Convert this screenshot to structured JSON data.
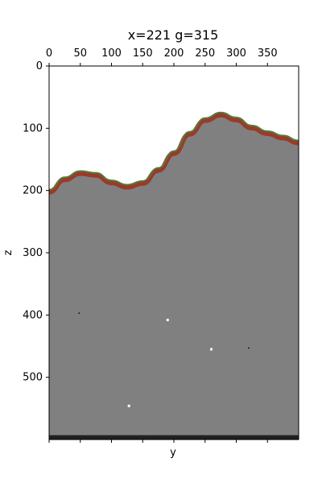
{
  "chart_data": {
    "type": "heatmap",
    "title": "x=221 g=315",
    "xlabel": "y",
    "ylabel": "z",
    "x_axis_position": "top",
    "xlim": [
      0,
      400
    ],
    "ylim": [
      600,
      0
    ],
    "x_ticks": [
      0,
      50,
      100,
      150,
      200,
      250,
      300,
      350
    ],
    "y_ticks": [
      0,
      100,
      200,
      300,
      400,
      500
    ],
    "x_tick_labels": [
      "0",
      "50",
      "100",
      "150",
      "200",
      "250",
      "300",
      "350"
    ],
    "y_tick_labels": [
      "0",
      "100",
      "200",
      "300",
      "400",
      "500"
    ],
    "grid": false,
    "colors": {
      "background_fill": "#808080",
      "surface_red": "#9a3a2a",
      "surface_green": "#557a3a",
      "speckle_white": "#ffffff",
      "speckle_black": "#000000"
    },
    "surface_profile_z": {
      "y": [
        0,
        25,
        50,
        75,
        100,
        125,
        150,
        175,
        200,
        225,
        250,
        275,
        300,
        325,
        350,
        375,
        400
      ],
      "z": [
        200,
        180,
        170,
        173,
        185,
        192,
        186,
        165,
        138,
        107,
        85,
        76,
        84,
        97,
        106,
        113,
        121
      ]
    },
    "speckles": [
      {
        "y": 48,
        "z": 397,
        "color": "black"
      },
      {
        "y": 190,
        "z": 408,
        "color": "white"
      },
      {
        "y": 128,
        "z": 546,
        "color": "white"
      },
      {
        "y": 260,
        "z": 455,
        "color": "white"
      },
      {
        "y": 320,
        "z": 453,
        "color": "black"
      }
    ],
    "bottom_noise_band": {
      "z_start": 593,
      "z_end": 600,
      "color": "black"
    }
  }
}
